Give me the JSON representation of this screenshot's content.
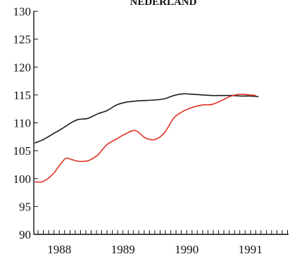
{
  "chart_data": {
    "type": "line",
    "title": "NEDERLAND",
    "xlabel": "",
    "ylabel": "",
    "ylim": [
      90,
      130
    ],
    "y_ticks": [
      90,
      95,
      100,
      105,
      110,
      115,
      120,
      125,
      130
    ],
    "y_tick_labels": [
      "90",
      "95",
      "100",
      "105",
      "110",
      "115",
      "120",
      "125",
      "130"
    ],
    "xlim": [
      1987.6,
      1991.6
    ],
    "x_tick_labels": [
      {
        "x": 1988,
        "label": "1988"
      },
      {
        "x": 1989,
        "label": "1989"
      },
      {
        "x": 1990,
        "label": "1990"
      },
      {
        "x": 1991,
        "label": "1991"
      }
    ],
    "minor_ticks_per_year": 12,
    "grid": false,
    "series": [
      {
        "color": "#1a1a1a",
        "x": [
          1987.62,
          1987.75,
          1987.9,
          1988.05,
          1988.2,
          1988.3,
          1988.45,
          1988.6,
          1988.75,
          1988.9,
          1989.05,
          1989.2,
          1989.35,
          1989.5,
          1989.65,
          1989.8,
          1989.95,
          1990.1,
          1990.25,
          1990.4,
          1990.55,
          1990.7,
          1990.85,
          1991.0,
          1991.12
        ],
        "values": [
          106.4,
          107.0,
          108.0,
          109.0,
          110.1,
          110.6,
          110.8,
          111.6,
          112.2,
          113.2,
          113.7,
          113.9,
          114.0,
          114.1,
          114.3,
          114.9,
          115.2,
          115.1,
          115.0,
          114.9,
          114.9,
          114.9,
          114.8,
          114.8,
          114.7
        ]
      },
      {
        "color": "#e03020",
        "x": [
          1987.62,
          1987.75,
          1987.9,
          1988.0,
          1988.1,
          1988.2,
          1988.3,
          1988.45,
          1988.6,
          1988.75,
          1988.9,
          1989.05,
          1989.2,
          1989.35,
          1989.5,
          1989.65,
          1989.8,
          1989.95,
          1990.1,
          1990.25,
          1990.4,
          1990.55,
          1990.7,
          1990.85,
          1991.0,
          1991.08
        ],
        "values": [
          99.4,
          99.5,
          100.8,
          102.3,
          103.6,
          103.4,
          103.1,
          103.2,
          104.2,
          106.1,
          107.1,
          108.1,
          108.6,
          107.3,
          107.0,
          108.2,
          110.9,
          112.1,
          112.8,
          113.2,
          113.3,
          114.0,
          114.8,
          115.1,
          115.0,
          114.9
        ]
      }
    ]
  }
}
